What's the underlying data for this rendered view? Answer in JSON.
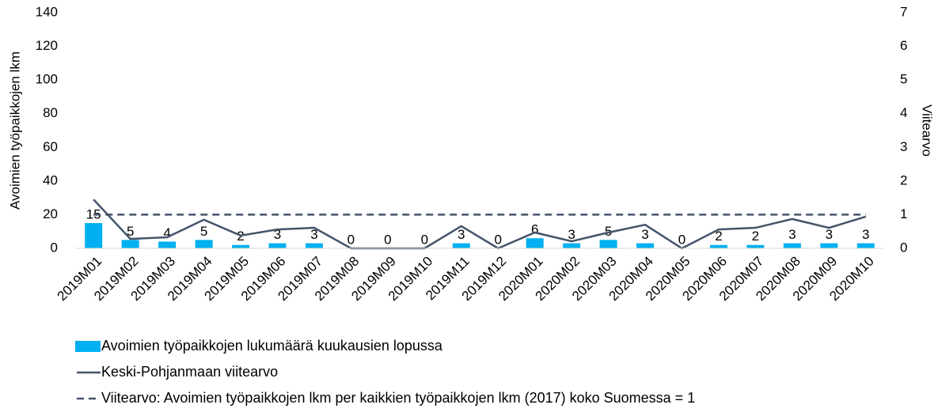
{
  "chart_data": {
    "type": "bar",
    "categories": [
      "2019M01",
      "2019M02",
      "2019M03",
      "2019M04",
      "2019M05",
      "2019M06",
      "2019M07",
      "2019M08",
      "2019M09",
      "2019M10",
      "2019M11",
      "2019M12",
      "2020M01",
      "2020M02",
      "2020M03",
      "2020M04",
      "2020M05",
      "2020M06",
      "2020M07",
      "2020M08",
      "2020M09",
      "2020M10"
    ],
    "y_label": "Avoimien työpaikkojen lkm",
    "y2_label": "Viitearvo",
    "ylim": [
      0,
      140
    ],
    "yticks": [
      0,
      20,
      40,
      60,
      80,
      100,
      120,
      140
    ],
    "y2lim": [
      0,
      7
    ],
    "y2ticks": [
      0,
      1,
      2,
      3,
      4,
      5,
      6,
      7
    ],
    "legend": "bottom",
    "series": [
      {
        "name": "Avoimien työpaikkojen lukumäärä kuukausien lopussa",
        "type": "bar",
        "color": "#00b0f0",
        "values": [
          15,
          5,
          4,
          5,
          2,
          3,
          3,
          0,
          0,
          0,
          3,
          0,
          6,
          3,
          5,
          3,
          0,
          2,
          2,
          3,
          3,
          3
        ],
        "data_labels": true
      },
      {
        "name": "Keski-Pohjanmaan viitearvo",
        "type": "line",
        "color": "#44546a",
        "axis": "y2",
        "values": [
          1.45,
          0.28,
          0.33,
          0.85,
          0.38,
          0.56,
          0.61,
          0,
          0,
          0,
          0.66,
          0,
          0.47,
          0.21,
          0.47,
          0.7,
          0,
          0.56,
          0.61,
          0.87,
          0.61,
          0.94
        ]
      },
      {
        "name": "Viitearvo: Avoimien työpaikkojen lkm per kaikkien työpaikkojen lkm (2017) koko Suomessa = 1",
        "type": "line",
        "color": "#44546a",
        "axis": "y2",
        "dashed": true,
        "values": [
          1,
          1,
          1,
          1,
          1,
          1,
          1,
          1,
          1,
          1,
          1,
          1,
          1,
          1,
          1,
          1,
          1,
          1,
          1,
          1,
          1,
          1
        ]
      }
    ]
  }
}
